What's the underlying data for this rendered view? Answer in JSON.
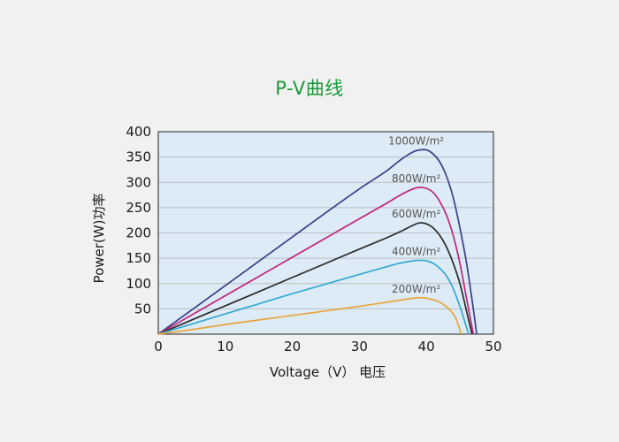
{
  "chart_data": {
    "type": "line",
    "title": "P-V曲线",
    "xlabel": "Voltage（V） 电压",
    "ylabel": "Power(W)功率",
    "xlim": [
      0,
      50
    ],
    "ylim": [
      0,
      400
    ],
    "xticks": [
      "0",
      "10",
      "20",
      "30",
      "40",
      "50"
    ],
    "yticks": [
      "50",
      "100",
      "150",
      "200",
      "250",
      "300",
      "350",
      "400"
    ],
    "grid": "horizontal",
    "series": [
      {
        "name": "1000W/m²",
        "color": "#3c3f86",
        "x": [
          0,
          5,
          10,
          15,
          20,
          25,
          30,
          34,
          36,
          38,
          39,
          40,
          41,
          42,
          43,
          44,
          45,
          46,
          47,
          47.5
        ],
        "y": [
          0,
          48,
          96,
          144,
          192,
          240,
          287,
          322,
          343,
          360,
          364,
          364,
          356,
          340,
          312,
          270,
          210,
          140,
          50,
          0
        ]
      },
      {
        "name": "800W/m²",
        "color": "#c0247b",
        "x": [
          0,
          5,
          10,
          15,
          20,
          25,
          30,
          34,
          36,
          38,
          39,
          40,
          41,
          42,
          43,
          44,
          45,
          46,
          47
        ],
        "y": [
          0,
          38,
          76,
          114,
          152,
          190,
          228,
          258,
          274,
          287,
          290,
          288,
          280,
          262,
          235,
          195,
          140,
          70,
          0
        ]
      },
      {
        "name": "600W/m²",
        "color": "#2a2a2a",
        "x": [
          0,
          5,
          10,
          15,
          20,
          25,
          30,
          34,
          36,
          38,
          39,
          40,
          41,
          42,
          43,
          44,
          45,
          46,
          46.8
        ],
        "y": [
          0,
          28,
          56,
          84,
          112,
          140,
          168,
          190,
          202,
          215,
          220,
          218,
          210,
          195,
          172,
          140,
          100,
          45,
          0
        ]
      },
      {
        "name": "400W/m²",
        "color": "#35a9cf",
        "x": [
          0,
          5,
          10,
          15,
          20,
          25,
          30,
          34,
          36,
          38,
          39,
          40,
          41,
          42,
          43,
          44,
          45,
          45.6,
          46.3
        ],
        "y": [
          0,
          20,
          40,
          60,
          80,
          99,
          118,
          133,
          140,
          145,
          146,
          145,
          140,
          130,
          115,
          90,
          55,
          30,
          0
        ]
      },
      {
        "name": "200W/m²",
        "color": "#e8a43a",
        "x": [
          0,
          5,
          10,
          15,
          20,
          25,
          30,
          34,
          36,
          38,
          39,
          40,
          41,
          42,
          43,
          44,
          44.5,
          45.2
        ],
        "y": [
          0,
          9,
          19,
          28,
          37,
          46,
          55,
          63,
          67,
          71,
          72,
          71,
          68,
          63,
          54,
          40,
          28,
          0
        ]
      }
    ]
  }
}
